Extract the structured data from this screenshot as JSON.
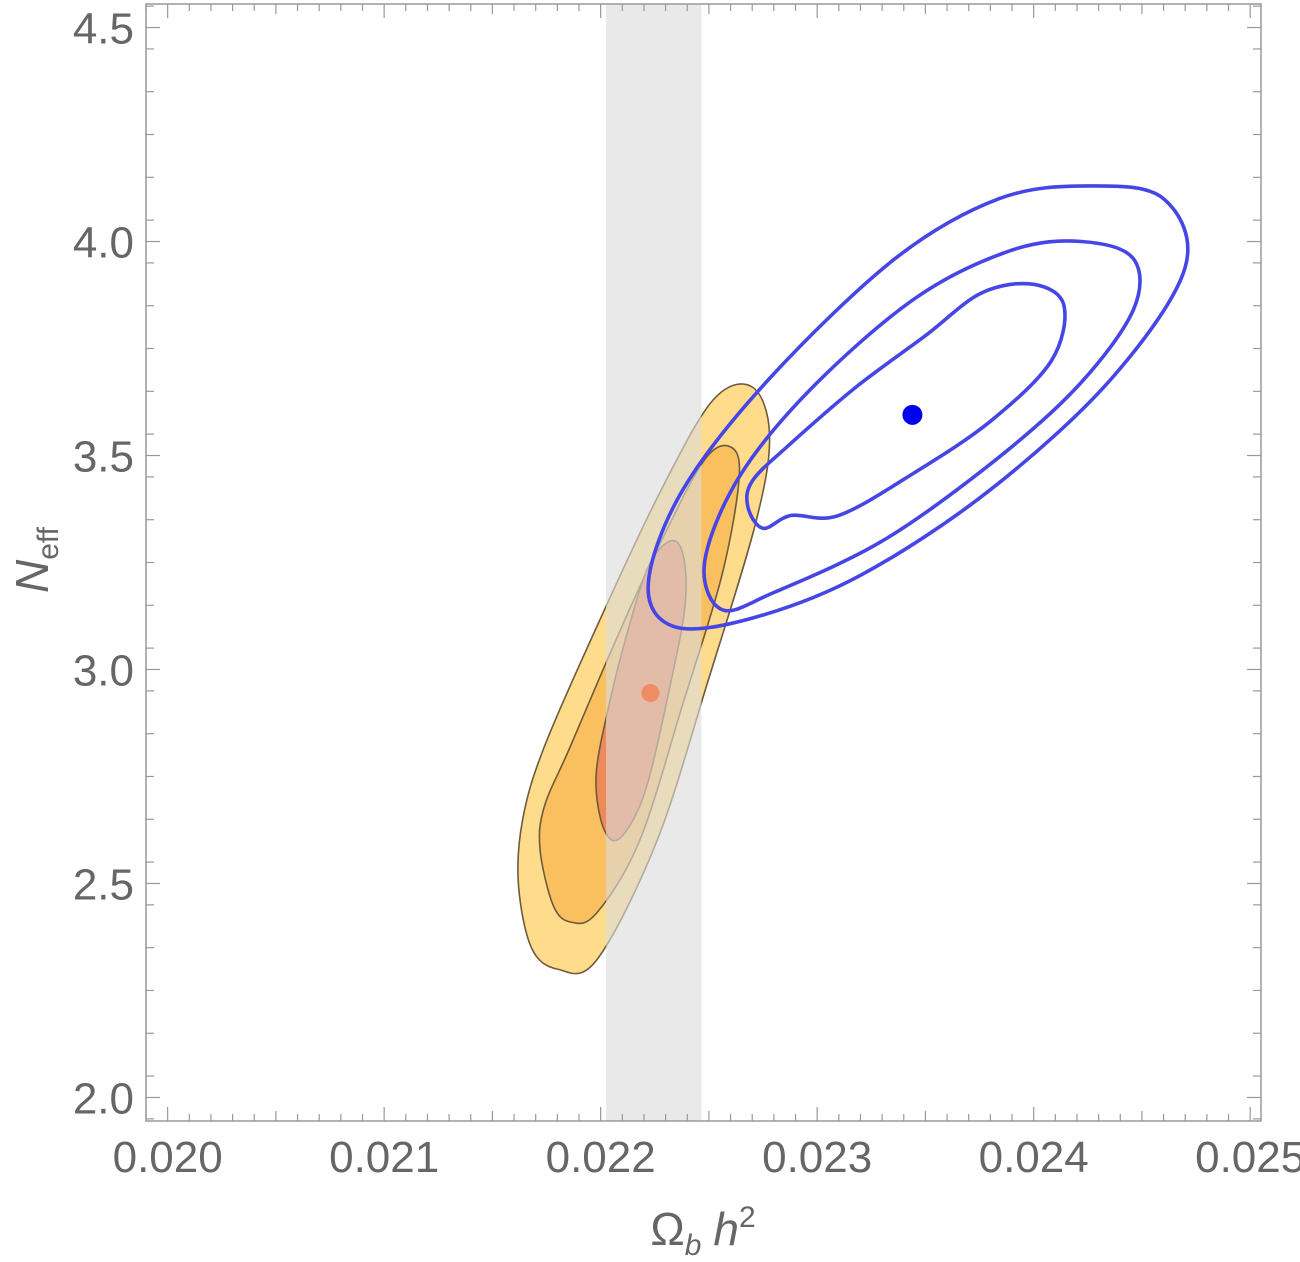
{
  "chart_data": {
    "type": "contour",
    "xlabel": {
      "main": "Ω",
      "main_sub": "b",
      "second": "h",
      "second_sup": "2"
    },
    "ylabel": {
      "main": "N",
      "sub": "eff"
    },
    "xlim": [
      0.0199,
      0.02505
    ],
    "ylim": [
      1.945,
      4.555
    ],
    "x_ticks": [
      {
        "value": 0.02,
        "label": "0.020"
      },
      {
        "value": 0.021,
        "label": "0.021"
      },
      {
        "value": 0.022,
        "label": "0.022"
      },
      {
        "value": 0.023,
        "label": "0.023"
      },
      {
        "value": 0.024,
        "label": "0.024"
      },
      {
        "value": 0.025,
        "label": "0.025"
      }
    ],
    "y_ticks": [
      {
        "value": 2.0,
        "label": "2.0"
      },
      {
        "value": 2.5,
        "label": "2.5"
      },
      {
        "value": 3.0,
        "label": "3.0"
      },
      {
        "value": 3.5,
        "label": "3.5"
      },
      {
        "value": 4.0,
        "label": "4.0"
      },
      {
        "value": 4.5,
        "label": "4.5"
      }
    ],
    "band": {
      "x_min": 0.022025,
      "x_max": 0.022465,
      "color": "#dcdcdc"
    },
    "filled_contours": {
      "center": [
        0.02223,
        2.945
      ],
      "points_1sigma": [
        [
          0.022,
          2.65
        ],
        [
          0.02206,
          2.6
        ],
        [
          0.02214,
          2.64
        ],
        [
          0.02222,
          2.74
        ],
        [
          0.02232,
          2.96
        ],
        [
          0.02239,
          3.15
        ],
        [
          0.02238,
          3.27
        ],
        [
          0.02232,
          3.3
        ],
        [
          0.02222,
          3.24
        ],
        [
          0.02212,
          3.08
        ],
        [
          0.02204,
          2.92
        ],
        [
          0.02198,
          2.76
        ]
      ],
      "points_2sigma": [
        [
          0.02172,
          2.58
        ],
        [
          0.02178,
          2.45
        ],
        [
          0.02186,
          2.41
        ],
        [
          0.02198,
          2.43
        ],
        [
          0.02218,
          2.6
        ],
        [
          0.02238,
          2.92
        ],
        [
          0.02256,
          3.22
        ],
        [
          0.02264,
          3.45
        ],
        [
          0.0226,
          3.52
        ],
        [
          0.02248,
          3.49
        ],
        [
          0.02228,
          3.3
        ],
        [
          0.02208,
          3.08
        ],
        [
          0.02186,
          2.82
        ],
        [
          0.02174,
          2.68
        ]
      ],
      "points_3sigma": [
        [
          0.02162,
          2.5
        ],
        [
          0.02168,
          2.35
        ],
        [
          0.0218,
          2.3
        ],
        [
          0.02198,
          2.32
        ],
        [
          0.02226,
          2.6
        ],
        [
          0.0225,
          2.98
        ],
        [
          0.02272,
          3.35
        ],
        [
          0.02278,
          3.55
        ],
        [
          0.0227,
          3.66
        ],
        [
          0.02252,
          3.63
        ],
        [
          0.02228,
          3.42
        ],
        [
          0.022,
          3.12
        ],
        [
          0.02174,
          2.82
        ],
        [
          0.02164,
          2.65
        ]
      ],
      "fill_colors": [
        "#ffdc8c",
        "#fac060",
        "#ee8a58"
      ],
      "edge_color": "#6e5a3c",
      "best_fit_color": "#f08c64"
    },
    "line_contours": {
      "center": [
        0.02344,
        3.595
      ],
      "points_1sigma": [
        [
          0.02268,
          3.38
        ],
        [
          0.02275,
          3.33
        ],
        [
          0.02288,
          3.36
        ],
        [
          0.0231,
          3.36
        ],
        [
          0.02345,
          3.46
        ],
        [
          0.0238,
          3.58
        ],
        [
          0.02408,
          3.72
        ],
        [
          0.02414,
          3.85
        ],
        [
          0.024,
          3.9
        ],
        [
          0.02376,
          3.88
        ],
        [
          0.0235,
          3.78
        ],
        [
          0.02318,
          3.66
        ],
        [
          0.02286,
          3.52
        ],
        [
          0.0227,
          3.44
        ]
      ],
      "points_2sigma": [
        [
          0.02248,
          3.25
        ],
        [
          0.02256,
          3.14
        ],
        [
          0.0228,
          3.18
        ],
        [
          0.0233,
          3.3
        ],
        [
          0.0238,
          3.48
        ],
        [
          0.0242,
          3.66
        ],
        [
          0.02446,
          3.84
        ],
        [
          0.02446,
          3.96
        ],
        [
          0.02422,
          4.0
        ],
        [
          0.0239,
          3.98
        ],
        [
          0.02346,
          3.87
        ],
        [
          0.02298,
          3.66
        ],
        [
          0.02264,
          3.45
        ]
      ],
      "points_3sigma": [
        [
          0.02222,
          3.2
        ],
        [
          0.02234,
          3.1
        ],
        [
          0.0227,
          3.12
        ],
        [
          0.0232,
          3.22
        ],
        [
          0.0238,
          3.42
        ],
        [
          0.02436,
          3.68
        ],
        [
          0.0247,
          3.94
        ],
        [
          0.0246,
          4.1
        ],
        [
          0.02426,
          4.13
        ],
        [
          0.02384,
          4.1
        ],
        [
          0.02336,
          3.96
        ],
        [
          0.02278,
          3.68
        ],
        [
          0.02238,
          3.42
        ]
      ],
      "line_color": "#4646e6",
      "best_fit_color": "#0000ee"
    }
  }
}
